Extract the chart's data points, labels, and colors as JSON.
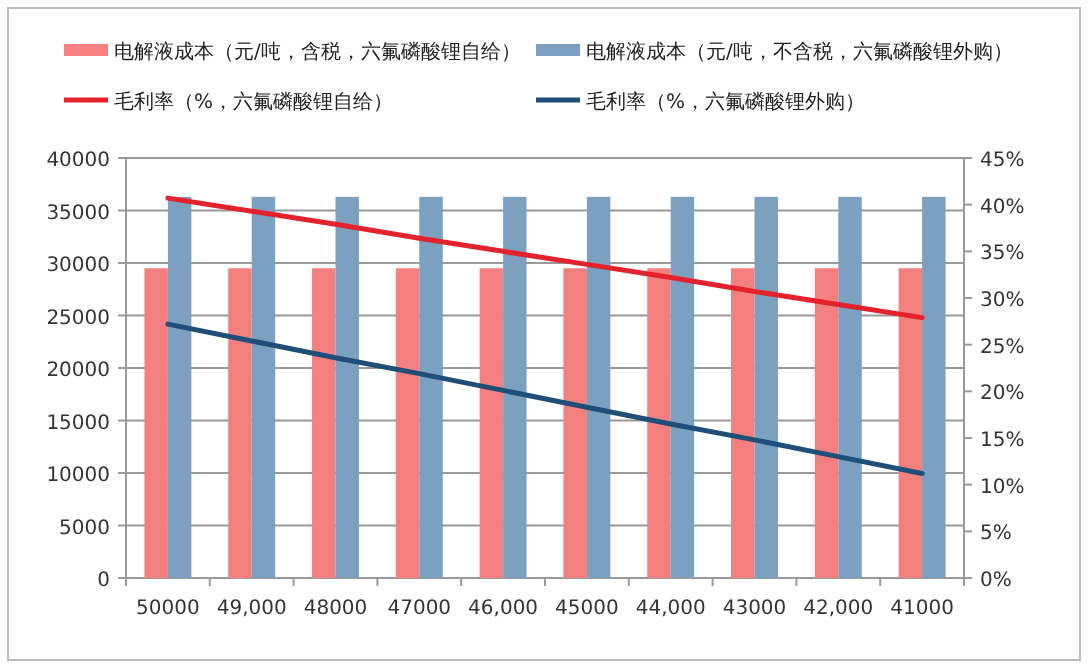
{
  "chart_data": {
    "type": "bar",
    "categories": [
      "50000",
      "49,000",
      "48000",
      "47000",
      "46,000",
      "45000",
      "44,000",
      "43000",
      "42,000",
      "41000"
    ],
    "series": [
      {
        "name": "电解液成本（元/吨，含税，六氟磷酸锂自给）",
        "color": "#f47f7f",
        "values": [
          29500,
          29500,
          29500,
          29500,
          29500,
          29500,
          29500,
          29500,
          29500,
          29500
        ]
      },
      {
        "name": "电解液成本（元/吨，不含税，六氟磷酸锂外购）",
        "color": "#7ba0c0",
        "values": [
          36300,
          36300,
          36300,
          36300,
          36300,
          36300,
          36300,
          36300,
          36300,
          36300
        ]
      },
      {
        "name": "毛利率（%，六氟磷酸锂自给）",
        "type": "line",
        "axis": "y2",
        "color": "#e3222b",
        "values": [
          40.7,
          39.3,
          37.9,
          36.4,
          35.0,
          33.6,
          32.2,
          30.7,
          29.3,
          27.9
        ]
      },
      {
        "name": "毛利率（%，六氟磷酸锂外购）",
        "type": "line",
        "axis": "y2",
        "color": "#1f4e79",
        "values": [
          27.2,
          25.4,
          23.6,
          21.9,
          20.1,
          18.3,
          16.5,
          14.8,
          13.0,
          11.2
        ]
      }
    ],
    "ylim": [
      0,
      40000
    ],
    "yticks": [
      0,
      5000,
      10000,
      15000,
      20000,
      25000,
      30000,
      35000,
      40000
    ],
    "y2lim": [
      0,
      45
    ],
    "y2ticks": [
      {
        "value": 0,
        "label": "0%"
      },
      {
        "value": 5,
        "label": "5%"
      },
      {
        "value": 10,
        "label": "10%"
      },
      {
        "value": 15,
        "label": "15%"
      },
      {
        "value": 20,
        "label": "20%"
      },
      {
        "value": 25,
        "label": "25%"
      },
      {
        "value": 30,
        "label": "30%"
      },
      {
        "value": 35,
        "label": "35%"
      },
      {
        "value": 40,
        "label": "40%"
      },
      {
        "value": 45,
        "label": "45%"
      }
    ],
    "grid": "y",
    "legend": "top"
  }
}
